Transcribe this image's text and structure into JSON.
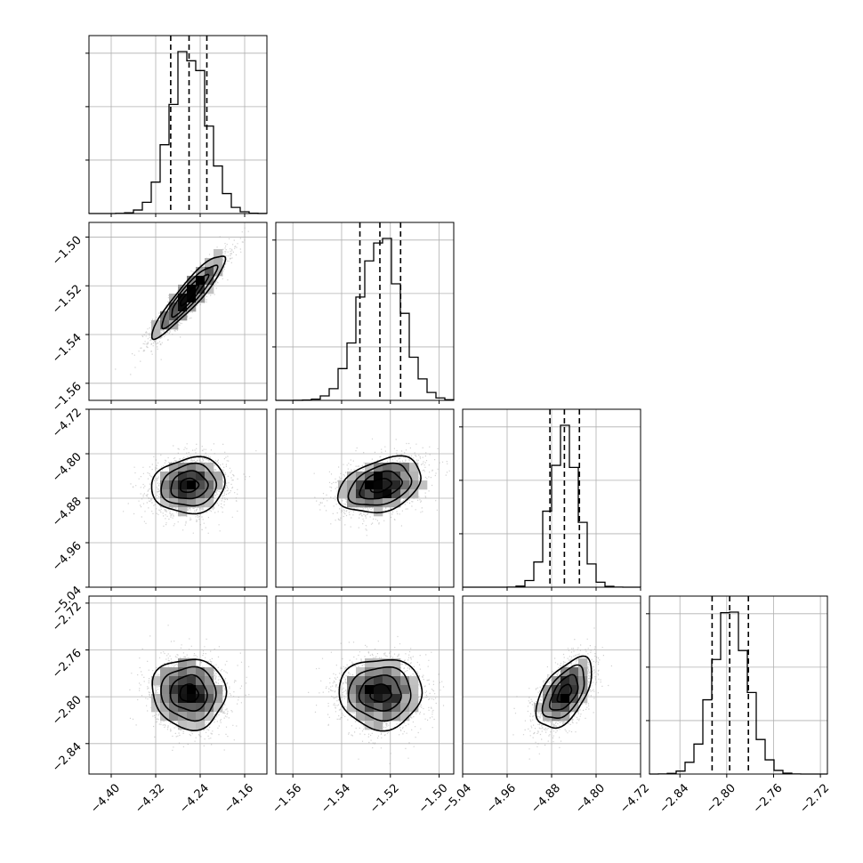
{
  "chart_data": {
    "type": "corner",
    "title": "",
    "xlabel": "",
    "ylabel": "",
    "grid": true,
    "params": [
      {
        "index": 0,
        "range": [
          -4.44,
          -4.12
        ],
        "ticks": [
          -4.4,
          -4.32,
          -4.24,
          -4.16
        ],
        "tick_labels": [
          "−4.40",
          "−4.32",
          "−4.24",
          "−4.16"
        ],
        "mean": -4.26,
        "sd": 0.033,
        "quantiles": [
          -4.293,
          -4.26,
          -4.228
        ]
      },
      {
        "index": 1,
        "range": [
          -1.567,
          -1.494
        ],
        "ticks": [
          -1.56,
          -1.54,
          -1.52,
          -1.5
        ],
        "tick_labels": [
          "−1.56",
          "−1.54",
          "−1.52",
          "−1.50"
        ],
        "mean": -1.524,
        "sd": 0.0085,
        "quantiles": [
          -1.5325,
          -1.5243,
          -1.5158
        ]
      },
      {
        "index": 2,
        "range": [
          -5.04,
          -4.72
        ],
        "ticks": [
          -5.04,
          -4.96,
          -4.88,
          -4.8,
          -4.72
        ],
        "tick_labels": [
          "−5.04",
          "−4.96",
          "−4.88",
          "−4.80",
          "−4.72"
        ],
        "mean": -4.857,
        "sd": 0.025,
        "quantiles": [
          -4.883,
          -4.857,
          -4.83
        ]
      },
      {
        "index": 3,
        "range": [
          -2.866,
          -2.714
        ],
        "ticks": [
          -2.84,
          -2.8,
          -2.76,
          -2.72
        ],
        "tick_labels": [
          "−2.84",
          "−2.80",
          "−2.76",
          "−2.72"
        ],
        "mean": -2.797,
        "sd": 0.015,
        "quantiles": [
          -2.8125,
          -2.7975,
          -2.7815
        ]
      }
    ],
    "correlations": [
      [
        1,
        0.92,
        0.1,
        -0.05
      ],
      [
        0.92,
        1,
        0.35,
        0.0
      ],
      [
        0.1,
        0.35,
        1,
        0.55
      ],
      [
        -0.05,
        0.0,
        0.55,
        1
      ]
    ],
    "contour_levels_sigma": [
      0.5,
      1.0,
      1.5,
      2.0
    ],
    "colors": {
      "ink": "#000000",
      "scatter": "#9a9a9a",
      "grid": "#b0b0b0"
    }
  }
}
